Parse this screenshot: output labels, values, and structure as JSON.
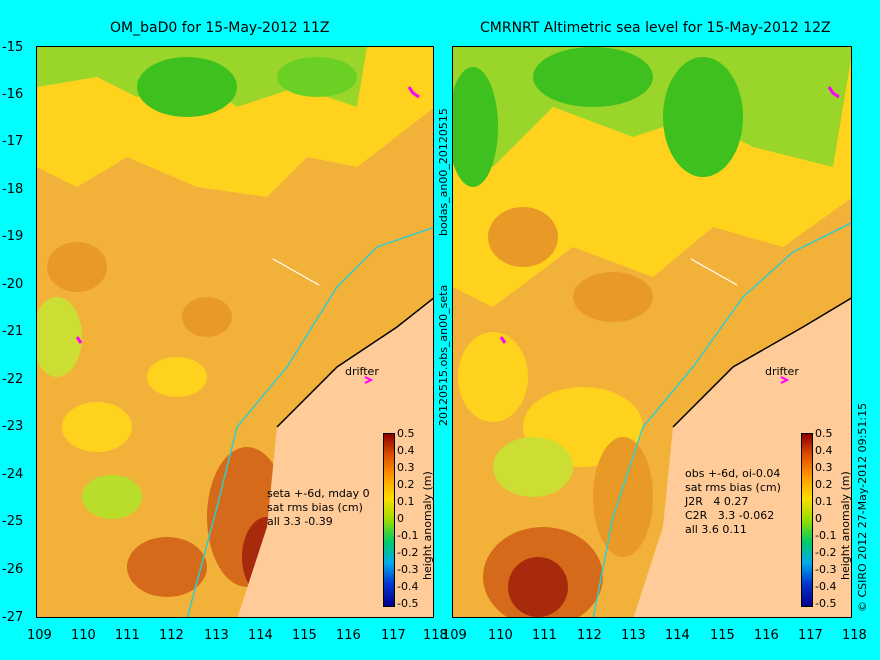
{
  "panels": [
    {
      "title": "OM_baD0 for 15-May-2012 11Z",
      "annotation": "seta +-6d, mday 0\nsat rms bias (cm)\nall 3.3 -0.39",
      "drifter_label": "drifter"
    },
    {
      "title": "CMRNRT Altimetric sea level  for 15-May-2012 12Z",
      "annotation": "obs +-6d, oi-0.04\nsat rms bias (cm)\nJ2R   4 0.27\nC2R   3.3 -0.062\nall 3.6 0.11",
      "drifter_label": "drifter"
    }
  ],
  "y_ticks": [
    "-15",
    "-16",
    "-17",
    "-18",
    "-19",
    "-20",
    "-21",
    "-22",
    "-23",
    "-24",
    "-25",
    "-26",
    "-27"
  ],
  "x_ticks": [
    "109",
    "110",
    "111",
    "112",
    "113",
    "114",
    "115",
    "116",
    "117",
    "118"
  ],
  "colorbar": {
    "ticks": [
      "0.5",
      "0.4",
      "0.3",
      "0.2",
      "0.1",
      "0",
      "-0.1",
      "-0.2",
      "-0.3",
      "-0.4",
      "-0.5"
    ],
    "label": "height anomaly (m)"
  },
  "side_labels": {
    "top": "bodas_an00_20120515",
    "middle": "20120515.obs_an00_seta",
    "copyright": "© CSIRO 2012   27-May-2012 09:51:15"
  },
  "colors": {
    "background": "#00ffff",
    "land": "#ffcc99",
    "coastline_trace": "#33cccc",
    "drifter": "#ff00ff"
  }
}
